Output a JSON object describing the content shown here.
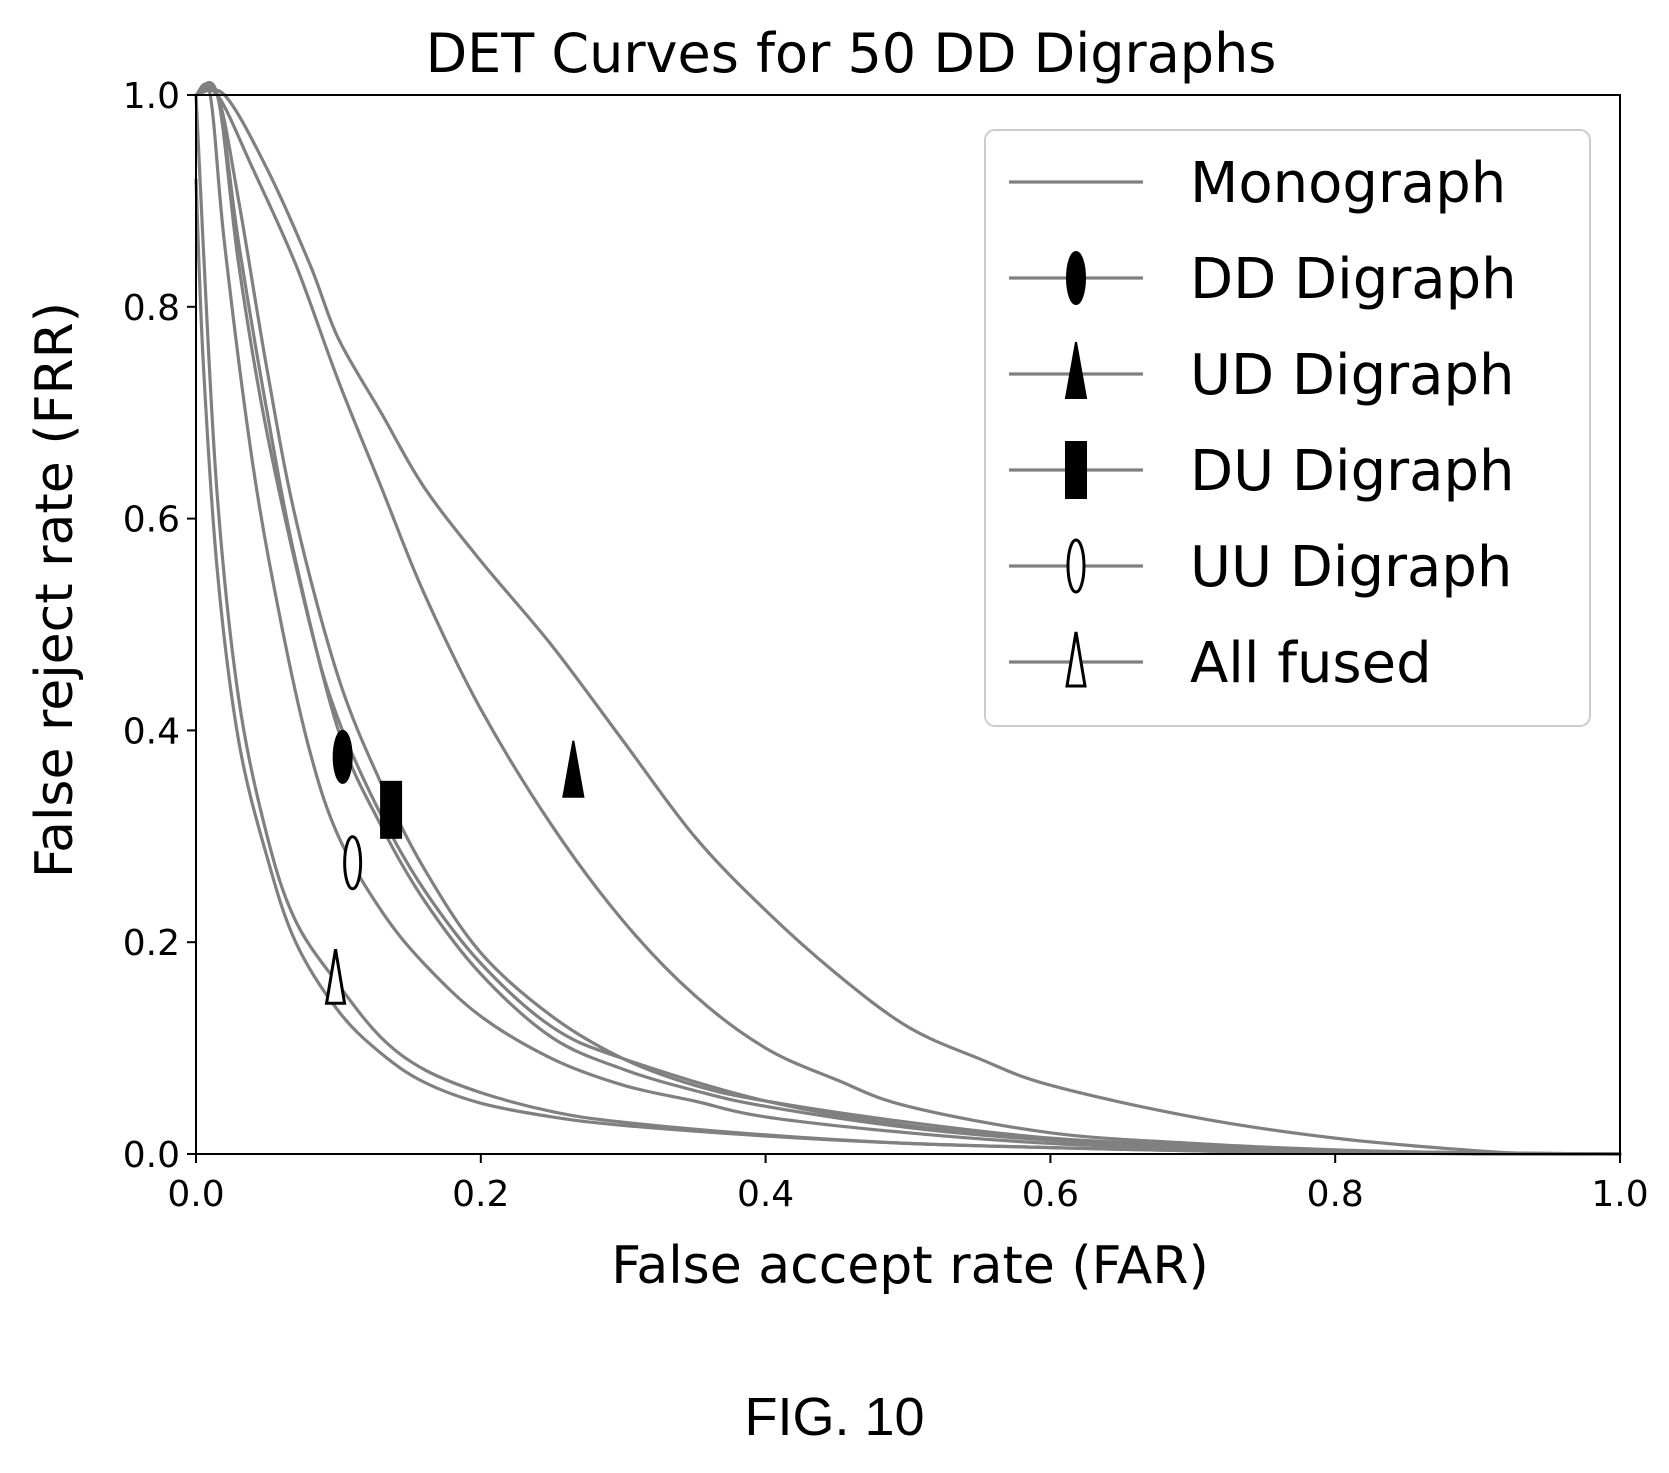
{
  "chart_data": {
    "type": "line",
    "title": "DET Curves for 50 DD Digraphs",
    "xlabel": "False accept rate (FAR)",
    "ylabel": "False reject rate (FRR)",
    "xlim": [
      0.0,
      1.0
    ],
    "ylim": [
      0.0,
      1.0
    ],
    "xticks": [
      "0.0",
      "0.2",
      "0.4",
      "0.6",
      "0.8",
      "1.0"
    ],
    "yticks": [
      "0.0",
      "0.2",
      "0.4",
      "0.6",
      "0.8",
      "1.0"
    ],
    "grid": false,
    "legend_position": "top-right",
    "line_color": "#808080",
    "series": [
      {
        "name": "Monograph",
        "marker": "none",
        "points": [
          [
            0.0,
            1.0
          ],
          [
            0.02,
            1.0
          ],
          [
            0.05,
            0.93
          ],
          [
            0.08,
            0.84
          ],
          [
            0.1,
            0.77
          ],
          [
            0.13,
            0.7
          ],
          [
            0.16,
            0.63
          ],
          [
            0.2,
            0.56
          ],
          [
            0.25,
            0.48
          ],
          [
            0.3,
            0.39
          ],
          [
            0.35,
            0.3
          ],
          [
            0.4,
            0.23
          ],
          [
            0.45,
            0.17
          ],
          [
            0.5,
            0.12
          ],
          [
            0.55,
            0.09
          ],
          [
            0.6,
            0.065
          ],
          [
            0.7,
            0.035
          ],
          [
            0.8,
            0.015
          ],
          [
            0.9,
            0.003
          ],
          [
            0.95,
            0.0
          ],
          [
            1.0,
            0.0
          ]
        ]
      },
      {
        "name": "DD Digraph",
        "marker": "filled-ellipse",
        "marker_point": [
          0.103,
          0.375
        ],
        "points": [
          [
            0.0,
            1.0
          ],
          [
            0.015,
            1.0
          ],
          [
            0.03,
            0.86
          ],
          [
            0.05,
            0.7
          ],
          [
            0.07,
            0.56
          ],
          [
            0.1,
            0.4
          ],
          [
            0.13,
            0.31
          ],
          [
            0.16,
            0.24
          ],
          [
            0.2,
            0.17
          ],
          [
            0.25,
            0.11
          ],
          [
            0.3,
            0.08
          ],
          [
            0.35,
            0.06
          ],
          [
            0.4,
            0.045
          ],
          [
            0.5,
            0.025
          ],
          [
            0.6,
            0.013
          ],
          [
            0.7,
            0.007
          ],
          [
            0.8,
            0.003
          ],
          [
            0.9,
            0.001
          ],
          [
            1.0,
            0.0
          ]
        ]
      },
      {
        "name": "UD Digraph",
        "marker": "filled-triangle",
        "marker_point": [
          0.265,
          0.36
        ],
        "points": [
          [
            0.0,
            1.0
          ],
          [
            0.015,
            1.0
          ],
          [
            0.04,
            0.93
          ],
          [
            0.07,
            0.84
          ],
          [
            0.1,
            0.73
          ],
          [
            0.13,
            0.63
          ],
          [
            0.16,
            0.53
          ],
          [
            0.2,
            0.42
          ],
          [
            0.25,
            0.31
          ],
          [
            0.3,
            0.22
          ],
          [
            0.35,
            0.15
          ],
          [
            0.4,
            0.1
          ],
          [
            0.45,
            0.07
          ],
          [
            0.5,
            0.045
          ],
          [
            0.6,
            0.02
          ],
          [
            0.7,
            0.01
          ],
          [
            0.8,
            0.004
          ],
          [
            0.9,
            0.001
          ],
          [
            1.0,
            0.0
          ]
        ]
      },
      {
        "name": "DU Digraph",
        "marker": "filled-rectangle",
        "marker_point": [
          0.137,
          0.325
        ],
        "points": [
          [
            0.0,
            1.0
          ],
          [
            0.015,
            1.0
          ],
          [
            0.03,
            0.9
          ],
          [
            0.05,
            0.74
          ],
          [
            0.07,
            0.6
          ],
          [
            0.1,
            0.45
          ],
          [
            0.13,
            0.35
          ],
          [
            0.16,
            0.27
          ],
          [
            0.2,
            0.19
          ],
          [
            0.25,
            0.13
          ],
          [
            0.3,
            0.09
          ],
          [
            0.35,
            0.065
          ],
          [
            0.4,
            0.05
          ],
          [
            0.5,
            0.03
          ],
          [
            0.6,
            0.015
          ],
          [
            0.7,
            0.008
          ],
          [
            0.8,
            0.003
          ],
          [
            0.9,
            0.001
          ],
          [
            1.0,
            0.0
          ]
        ]
      },
      {
        "name": "UU Digraph",
        "marker": "open-ellipse",
        "marker_point": [
          0.11,
          0.275
        ],
        "points": [
          [
            0.0,
            1.0
          ],
          [
            0.01,
            1.0
          ],
          [
            0.02,
            0.86
          ],
          [
            0.04,
            0.65
          ],
          [
            0.06,
            0.5
          ],
          [
            0.08,
            0.38
          ],
          [
            0.1,
            0.3
          ],
          [
            0.13,
            0.23
          ],
          [
            0.16,
            0.18
          ],
          [
            0.2,
            0.13
          ],
          [
            0.25,
            0.09
          ],
          [
            0.3,
            0.065
          ],
          [
            0.35,
            0.05
          ],
          [
            0.4,
            0.035
          ],
          [
            0.5,
            0.02
          ],
          [
            0.6,
            0.01
          ],
          [
            0.7,
            0.005
          ],
          [
            0.8,
            0.002
          ],
          [
            0.9,
            0.0
          ],
          [
            1.0,
            0.0
          ]
        ]
      },
      {
        "name": "All fused",
        "marker": "open-triangle",
        "marker_point": [
          0.098,
          0.165
        ],
        "points": [
          [
            0.0,
            1.0
          ],
          [
            0.005,
            0.86
          ],
          [
            0.015,
            0.62
          ],
          [
            0.03,
            0.43
          ],
          [
            0.05,
            0.3
          ],
          [
            0.07,
            0.22
          ],
          [
            0.1,
            0.16
          ],
          [
            0.13,
            0.11
          ],
          [
            0.16,
            0.08
          ],
          [
            0.2,
            0.058
          ],
          [
            0.25,
            0.04
          ],
          [
            0.3,
            0.03
          ],
          [
            0.4,
            0.018
          ],
          [
            0.5,
            0.01
          ],
          [
            0.6,
            0.006
          ],
          [
            0.7,
            0.003
          ],
          [
            0.8,
            0.001
          ],
          [
            1.0,
            0.0
          ]
        ]
      },
      {
        "name": "",
        "marker": "none",
        "points": [
          [
            0.0,
            1.0
          ],
          [
            0.015,
            1.0
          ],
          [
            0.03,
            0.84
          ],
          [
            0.05,
            0.68
          ],
          [
            0.08,
            0.5
          ],
          [
            0.1,
            0.41
          ],
          [
            0.13,
            0.32
          ],
          [
            0.16,
            0.25
          ],
          [
            0.2,
            0.18
          ],
          [
            0.25,
            0.12
          ],
          [
            0.3,
            0.09
          ],
          [
            0.4,
            0.05
          ],
          [
            0.5,
            0.027
          ],
          [
            0.6,
            0.014
          ],
          [
            0.7,
            0.007
          ],
          [
            0.8,
            0.003
          ],
          [
            0.9,
            0.001
          ],
          [
            1.0,
            0.0
          ]
        ]
      },
      {
        "name": "",
        "marker": "none",
        "points": [
          [
            0.0,
            0.92
          ],
          [
            0.005,
            0.75
          ],
          [
            0.015,
            0.55
          ],
          [
            0.03,
            0.39
          ],
          [
            0.05,
            0.28
          ],
          [
            0.07,
            0.2
          ],
          [
            0.1,
            0.135
          ],
          [
            0.13,
            0.095
          ],
          [
            0.16,
            0.068
          ],
          [
            0.2,
            0.048
          ],
          [
            0.25,
            0.035
          ],
          [
            0.3,
            0.027
          ],
          [
            0.4,
            0.017
          ],
          [
            0.5,
            0.01
          ],
          [
            0.6,
            0.006
          ],
          [
            0.7,
            0.003
          ],
          [
            0.8,
            0.001
          ],
          [
            1.0,
            0.0
          ]
        ]
      }
    ]
  },
  "figure_caption": "FIG. 10"
}
